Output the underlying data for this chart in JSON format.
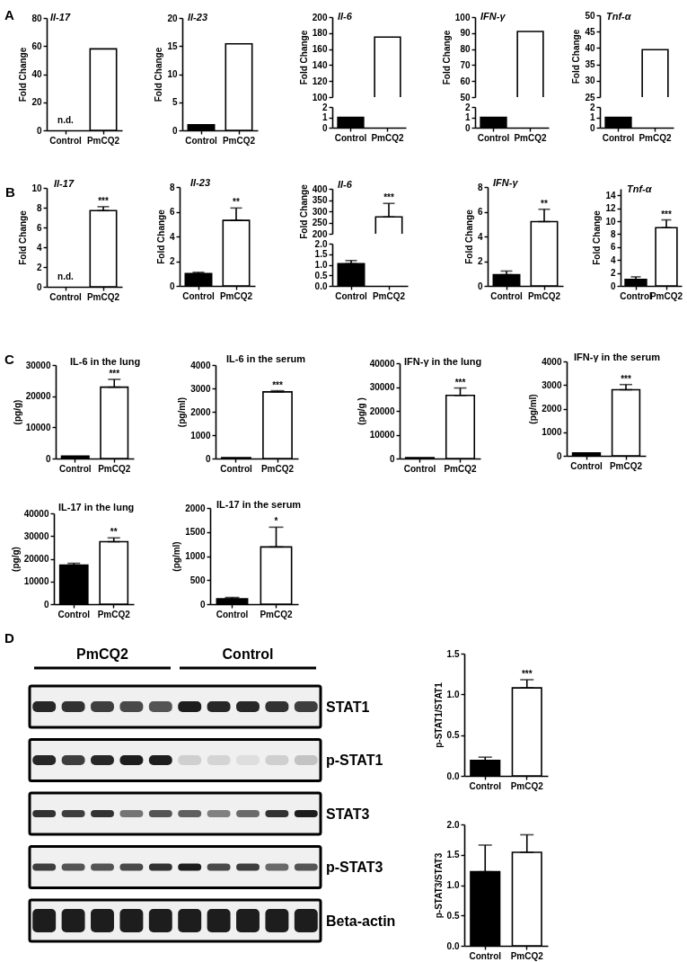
{
  "chart_data": [
    {
      "type": "bar",
      "title": "Il-17",
      "ylabel": "Fold Change",
      "categories": [
        "Control",
        "PmCQ2"
      ],
      "values": [
        null,
        58
      ],
      "value_labels": [
        "n.d.",
        null
      ],
      "colors": [
        "#000000",
        "#ffffff"
      ],
      "ylim": [
        0,
        80
      ],
      "yticks": [
        0,
        20,
        40,
        60,
        80
      ],
      "annotations": [
        "A"
      ]
    },
    {
      "type": "bar",
      "title": "Il-23",
      "ylabel": "Fold Change",
      "categories": [
        "Control",
        "PmCQ2"
      ],
      "values": [
        1,
        15.4
      ],
      "colors": [
        "#000000",
        "#ffffff"
      ],
      "ylim": [
        0,
        20
      ],
      "yticks": [
        0,
        5,
        10,
        15,
        20
      ]
    },
    {
      "type": "bar",
      "title": "Il-6",
      "ylabel": "Fold Change",
      "categories": [
        "Control",
        "PmCQ2"
      ],
      "values": [
        null,
        175
      ],
      "colors": [
        "#000000",
        "#ffffff"
      ],
      "ylim": [
        100,
        200
      ],
      "yticks": [
        100,
        120,
        140,
        160,
        180,
        200
      ],
      "tick_labels": "y"
    },
    {
      "type": "bar",
      "categories": [
        "Control",
        "PmCQ2"
      ],
      "values": [
        1,
        null
      ],
      "colors": [
        "#000000",
        "#ffffff"
      ],
      "ylim": [
        0,
        2
      ],
      "yticks": [
        0,
        1,
        2
      ]
    },
    {
      "type": "bar",
      "title": "IFN-γ",
      "ylabel": "Fold Change",
      "categories": [
        "Control",
        "PmCQ2"
      ],
      "values": [
        null,
        91
      ],
      "colors": [
        "#000000",
        "#ffffff"
      ],
      "ylim": [
        50,
        100
      ],
      "yticks": [
        50,
        60,
        70,
        80,
        90,
        100
      ],
      "tick_labels": "y"
    },
    {
      "type": "bar",
      "categories": [
        "Control",
        "PmCQ2"
      ],
      "values": [
        1,
        null
      ],
      "colors": [
        "#000000",
        "#ffffff"
      ],
      "ylim": [
        0,
        2
      ],
      "yticks": [
        0,
        1,
        2
      ]
    },
    {
      "type": "bar",
      "title": "Tnf-α",
      "ylabel": "Fold Change",
      "categories": [
        "Control",
        "PmCQ2"
      ],
      "values": [
        null,
        39.5
      ],
      "colors": [
        "#000000",
        "#ffffff"
      ],
      "ylim": [
        25,
        50
      ],
      "yticks": [
        25,
        30,
        35,
        40,
        45,
        50
      ],
      "tick_labels": "y"
    },
    {
      "type": "bar",
      "categories": [
        "Control",
        "PmCQ2"
      ],
      "values": [
        1,
        null
      ],
      "colors": [
        "#000000",
        "#ffffff"
      ],
      "ylim": [
        0,
        2
      ],
      "yticks": [
        0,
        1,
        2
      ]
    },
    {
      "type": "bar",
      "title": "Il-17",
      "ylabel": "Fold Change",
      "categories": [
        "Control",
        "PmCQ2"
      ],
      "values": [
        null,
        7.7
      ],
      "value_labels": [
        "n.d.",
        null
      ],
      "errors": [
        null,
        [
          7.7,
          8.1
        ]
      ],
      "colors": [
        "#000000",
        "#ffffff"
      ],
      "ylim": [
        0,
        10
      ],
      "yticks": [
        0,
        2,
        4,
        6,
        8,
        10
      ],
      "annotations": [
        "B",
        {
          "text": "***",
          "x": "PmCQ2",
          "y": 8.1
        }
      ]
    },
    {
      "type": "bar",
      "title": "Il-23",
      "ylabel": "Fold Change",
      "categories": [
        "Control",
        "PmCQ2"
      ],
      "values": [
        1,
        5.3
      ],
      "errors": [
        [
          1,
          1.1
        ],
        [
          5.3,
          6.3
        ]
      ],
      "colors": [
        "#000000",
        "#ffffff"
      ],
      "ylim": [
        0,
        8
      ],
      "yticks": [
        0,
        2,
        4,
        6,
        8
      ],
      "annotations": [
        {
          "text": "**",
          "x": "PmCQ2",
          "y": 6.3
        }
      ]
    },
    {
      "type": "bar",
      "title": "Il-6",
      "ylabel": "Fold Change",
      "categories": [
        "Control",
        "PmCQ2"
      ],
      "values": [
        null,
        275
      ],
      "errors": [
        null,
        [
          275,
          335
        ]
      ],
      "colors": [
        "#000000",
        "#ffffff"
      ],
      "ylim": [
        200,
        400
      ],
      "yticks": [
        200,
        250,
        300,
        350,
        400
      ],
      "tick_labels": "y",
      "annotations": [
        {
          "text": "***",
          "x": "PmCQ2",
          "y": 335
        }
      ]
    },
    {
      "type": "bar",
      "categories": [
        "Control",
        "PmCQ2"
      ],
      "values": [
        1.05,
        null
      ],
      "errors": [
        [
          1.05,
          1.2
        ],
        null
      ],
      "colors": [
        "#000000",
        "#ffffff"
      ],
      "ylim": [
        0,
        2
      ],
      "yticks": [
        {
          "value": 0,
          "label": "0.0"
        },
        {
          "value": 0.5,
          "label": "0.5"
        },
        {
          "value": 1,
          "label": "1.0"
        },
        {
          "value": 1.5,
          "label": "1.5"
        },
        {
          "value": 2,
          "label": "2.0"
        }
      ]
    },
    {
      "type": "bar",
      "title": "IFN-γ",
      "ylabel": "Fold Change",
      "categories": [
        "Control",
        "PmCQ2"
      ],
      "values": [
        0.9,
        5.2
      ],
      "errors": [
        [
          0.9,
          1.2
        ],
        [
          5.2,
          6.2
        ]
      ],
      "colors": [
        "#000000",
        "#ffffff"
      ],
      "ylim": [
        0,
        8
      ],
      "yticks": [
        0,
        2,
        4,
        6,
        8
      ],
      "annotations": [
        {
          "text": "**",
          "x": "PmCQ2",
          "y": 6.2
        }
      ]
    },
    {
      "type": "bar",
      "title": "Tnf-α",
      "ylabel": "Fold Change",
      "categories": [
        "Control",
        "PmCQ2"
      ],
      "values": [
        1,
        9
      ],
      "errors": [
        [
          1,
          1.4
        ],
        [
          9,
          10.2
        ]
      ],
      "colors": [
        "#000000",
        "#ffffff"
      ],
      "ylim": [
        0,
        15
      ],
      "yticks": [
        0,
        2,
        4,
        6,
        8,
        10,
        12,
        14
      ],
      "annotations": [
        {
          "text": "***",
          "x": "PmCQ2",
          "y": 10.2
        }
      ]
    },
    {
      "type": "bar",
      "title": "IL-6 in the lung",
      "ylabel": "(pg/g)",
      "categories": [
        "Control",
        "PmCQ2"
      ],
      "values": [
        800,
        22900
      ],
      "errors": [
        null,
        [
          22900,
          25400
        ]
      ],
      "colors": [
        "#000000",
        "#ffffff"
      ],
      "ylim": [
        0,
        30000
      ],
      "yticks": [
        0,
        10000,
        20000,
        30000
      ],
      "annotations": [
        "C",
        {
          "text": "***",
          "x": "PmCQ2",
          "y": 25400
        }
      ]
    },
    {
      "type": "bar",
      "title": "IL-6 in the serum",
      "ylabel": "(pg/ml)",
      "categories": [
        "Control",
        "PmCQ2"
      ],
      "values": [
        40,
        2850
      ],
      "errors": [
        null,
        [
          2850,
          2900
        ]
      ],
      "colors": [
        "#000000",
        "#ffffff"
      ],
      "ylim": [
        0,
        4000
      ],
      "yticks": [
        0,
        1000,
        2000,
        3000,
        4000
      ],
      "annotations": [
        {
          "text": "***",
          "x": "PmCQ2",
          "y": 2900
        }
      ]
    },
    {
      "type": "bar",
      "title": "IFN-γ in the lung",
      "ylabel": "(pg/g )",
      "categories": [
        "Control",
        "PmCQ2"
      ],
      "values": [
        400,
        26500
      ],
      "errors": [
        null,
        [
          26500,
          29600
        ]
      ],
      "colors": [
        "#000000",
        "#ffffff"
      ],
      "ylim": [
        0,
        40000
      ],
      "yticks": [
        0,
        10000,
        20000,
        30000,
        40000
      ],
      "annotations": [
        {
          "text": "***",
          "x": "PmCQ2",
          "y": 29600
        }
      ]
    },
    {
      "type": "bar",
      "title": "IFN-γ in the serum",
      "ylabel": "(pg/ml)",
      "categories": [
        "Control",
        "PmCQ2"
      ],
      "values": [
        120,
        2800
      ],
      "errors": [
        null,
        [
          2800,
          3020
        ]
      ],
      "colors": [
        "#000000",
        "#ffffff"
      ],
      "ylim": [
        0,
        4000
      ],
      "yticks": [
        0,
        1000,
        2000,
        3000,
        4000
      ],
      "annotations": [
        {
          "text": "***",
          "x": "PmCQ2",
          "y": 3020
        }
      ]
    },
    {
      "type": "bar",
      "title": "IL-17 in the lung",
      "ylabel": "(pg/g)",
      "categories": [
        "Control",
        "PmCQ2"
      ],
      "values": [
        17200,
        27500
      ],
      "errors": [
        [
          17200,
          18000
        ],
        [
          27500,
          29200
        ]
      ],
      "colors": [
        "#000000",
        "#ffffff"
      ],
      "ylim": [
        0,
        40000
      ],
      "yticks": [
        0,
        10000,
        20000,
        30000,
        40000
      ],
      "annotations": [
        {
          "text": "**",
          "x": "PmCQ2",
          "y": 29200
        }
      ]
    },
    {
      "type": "bar",
      "title": "IL-17 in the serum",
      "ylabel": "(pg/ml)",
      "categories": [
        "Control",
        "PmCQ2"
      ],
      "values": [
        110,
        1190
      ],
      "errors": [
        [
          110,
          140
        ],
        [
          1190,
          1600
        ]
      ],
      "colors": [
        "#000000",
        "#ffffff"
      ],
      "ylim": [
        0,
        2000
      ],
      "yticks": [
        0,
        500,
        1000,
        1500,
        2000
      ],
      "annotations": [
        {
          "text": "*",
          "x": "PmCQ2",
          "y": 1600
        }
      ]
    },
    {
      "type": "other",
      "categories": [
        "PmCQ2",
        "Control"
      ],
      "y_categories": [
        "STAT1",
        "p-STAT1",
        "STAT3",
        "p-STAT3",
        "Beta-actin"
      ],
      "annotations": [
        "D"
      ]
    },
    {
      "type": "bar",
      "ylabel": "p-STAT1/STAT1",
      "categories": [
        "Control",
        "PmCQ2"
      ],
      "values": [
        0.19,
        1.08
      ],
      "errors": [
        [
          0.19,
          0.23
        ],
        [
          1.08,
          1.18
        ]
      ],
      "colors": [
        "#000000",
        "#ffffff"
      ],
      "ylim": [
        0,
        1.5
      ],
      "yticks": [
        {
          "value": 0,
          "label": "0.0"
        },
        {
          "value": 0.5,
          "label": "0.5"
        },
        {
          "value": 1,
          "label": "1.0"
        },
        {
          "value": 1.5,
          "label": "1.5"
        }
      ],
      "annotations": [
        {
          "text": "***",
          "x": "PmCQ2",
          "y": 1.18
        }
      ]
    },
    {
      "type": "bar",
      "ylabel": "p-STAT3/STAT3",
      "categories": [
        "Control",
        "PmCQ2"
      ],
      "values": [
        1.22,
        1.54
      ],
      "errors": [
        [
          1.22,
          1.66
        ],
        [
          1.54,
          1.83
        ]
      ],
      "colors": [
        "#000000",
        "#ffffff"
      ],
      "ylim": [
        0,
        2
      ],
      "yticks": [
        {
          "value": 0,
          "label": "0.0"
        },
        {
          "value": 0.5,
          "label": "0.5"
        },
        {
          "value": 1,
          "label": "1.0"
        },
        {
          "value": 1.5,
          "label": "1.5"
        },
        {
          "value": 2,
          "label": "2.0"
        }
      ]
    }
  ]
}
